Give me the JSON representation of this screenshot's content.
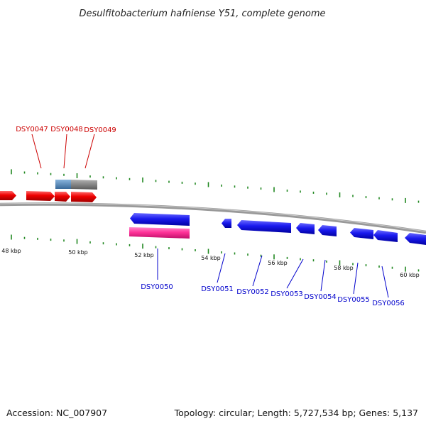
{
  "title": "Desulfitobacterium hafniense Y51, complete genome",
  "footer": {
    "accession": "Accession: NC_007907",
    "summary": "Topology: circular; Length: 5,727,534 bp; Genes: 5,137"
  },
  "colors": {
    "forward_gene": "#ee0000",
    "reverse_gene": "#1a1aee",
    "rna_feature": "#ff3399",
    "pseudo_blue": "#5588bb",
    "pseudo_gray": "#888888",
    "backbone": "#888888",
    "tick": "#228822",
    "label_top": "#cc0000",
    "label_bottom": "#0000cc"
  },
  "scale_labels": [
    "48 kbp",
    "50 kbp",
    "52 kbp",
    "54 kbp",
    "56 kbp",
    "58 kbp",
    "60 kbp"
  ],
  "top_gene_labels": [
    "DSY0047",
    "DSY0048",
    "DSY0049"
  ],
  "bottom_gene_labels": [
    "DSY0050",
    "DSY0051",
    "DSY0052",
    "DSY0053",
    "DSY0054",
    "DSY0055",
    "DSY0056"
  ]
}
